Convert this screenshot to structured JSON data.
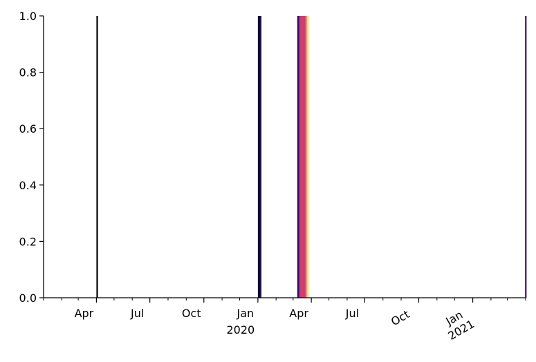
{
  "chart_data": {
    "type": "bar",
    "title": "",
    "xlabel": "",
    "ylabel": "",
    "x_axis_type": "date",
    "xlim": [
      "2019-01-01",
      "2021-04-01"
    ],
    "ylim": [
      0,
      1
    ],
    "grid": false,
    "legend": "none",
    "yticks": [
      {
        "value": 0.0,
        "label": "0.0"
      },
      {
        "value": 0.2,
        "label": "0.2"
      },
      {
        "value": 0.4,
        "label": "0.4"
      },
      {
        "value": 0.6,
        "label": "0.6"
      },
      {
        "value": 0.8,
        "label": "0.8"
      },
      {
        "value": 1.0,
        "label": "1.0"
      }
    ],
    "xticks_major": [
      {
        "date": "2019-04-01",
        "label": "Apr",
        "sublabel": "",
        "rotate": 0
      },
      {
        "date": "2019-07-01",
        "label": "Jul",
        "sublabel": "",
        "rotate": 0
      },
      {
        "date": "2019-10-01",
        "label": "Oct",
        "sublabel": "",
        "rotate": 0
      },
      {
        "date": "2020-01-01",
        "label": "Jan",
        "sublabel": "2020",
        "rotate": 0
      },
      {
        "date": "2020-04-01",
        "label": "Apr",
        "sublabel": "",
        "rotate": 0
      },
      {
        "date": "2020-07-01",
        "label": "Jul",
        "sublabel": "",
        "rotate": 0
      },
      {
        "date": "2020-10-01",
        "label": "Oct",
        "sublabel": "",
        "rotate": -30
      },
      {
        "date": "2021-01-01",
        "label": "Jan",
        "sublabel": "2021",
        "rotate": -30
      }
    ],
    "xticks_minor": [
      "2019-01-01",
      "2019-02-01",
      "2019-03-01",
      "2019-05-01",
      "2019-06-01",
      "2019-08-01",
      "2019-09-01",
      "2019-11-01",
      "2019-12-01",
      "2020-02-01",
      "2020-03-01",
      "2020-05-01",
      "2020-06-01",
      "2020-08-01",
      "2020-09-01",
      "2020-11-01",
      "2020-12-01",
      "2021-02-01",
      "2021-03-01",
      "2021-04-01"
    ],
    "bars": [
      {
        "start": "2019-04-01",
        "end": "2019-04-02",
        "value": 1.0,
        "color": "#000004"
      },
      {
        "start": "2020-01-01",
        "end": "2020-01-03",
        "value": 1.0,
        "color": "#140e36"
      },
      {
        "start": "2020-01-03",
        "end": "2020-01-04",
        "value": 1.0,
        "color": "#000004"
      },
      {
        "start": "2020-01-04",
        "end": "2020-01-07",
        "value": 1.0,
        "color": "#1d1147"
      },
      {
        "start": "2020-03-08",
        "end": "2020-03-12",
        "value": 1.0,
        "color": "#3b0f70"
      },
      {
        "start": "2020-03-12",
        "end": "2020-03-22",
        "value": 1.0,
        "color": "#cc3f71"
      },
      {
        "start": "2020-03-22",
        "end": "2020-03-24",
        "value": 1.0,
        "color": "#e35d5f"
      },
      {
        "start": "2020-03-24",
        "end": "2020-03-27",
        "value": 1.0,
        "color": "#fecf92"
      },
      {
        "start": "2020-03-27",
        "end": "2020-03-30",
        "value": 1.0,
        "color": "#fcfdbf"
      },
      {
        "start": "2021-03-31",
        "end": "2021-04-01",
        "value": 1.0,
        "color": "#3b0f70"
      }
    ]
  }
}
